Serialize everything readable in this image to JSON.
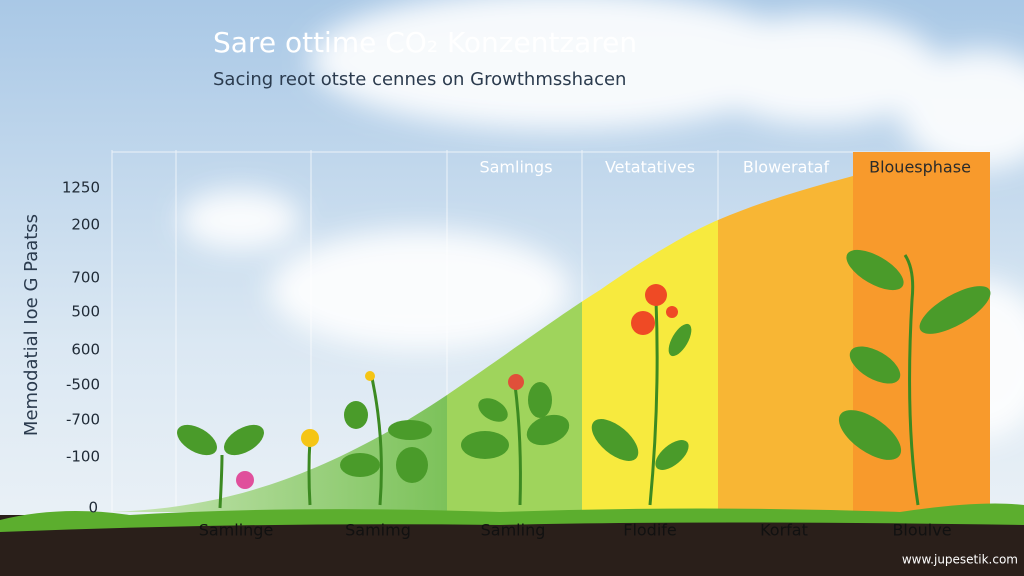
{
  "header": {
    "title": "Sare ottime CO₂ Konzentzaren",
    "subtitle": "Sacing reot otste cennes on Growthmsshacen"
  },
  "axis": {
    "label": "Memodatial Ioe G Paatss",
    "ticks": [
      "1250",
      "200",
      "700",
      "500",
      "600",
      "-500",
      "-700",
      "-100",
      "0"
    ]
  },
  "phases": [
    "Samlings",
    "Vetatatives",
    "Blowerataf",
    "Blouesphase"
  ],
  "stages": [
    "Samlinge",
    "Samimg",
    "Samling",
    "Flodife",
    "Korfat",
    "Bloulve"
  ],
  "watermark": "www.jupesetik.com"
}
